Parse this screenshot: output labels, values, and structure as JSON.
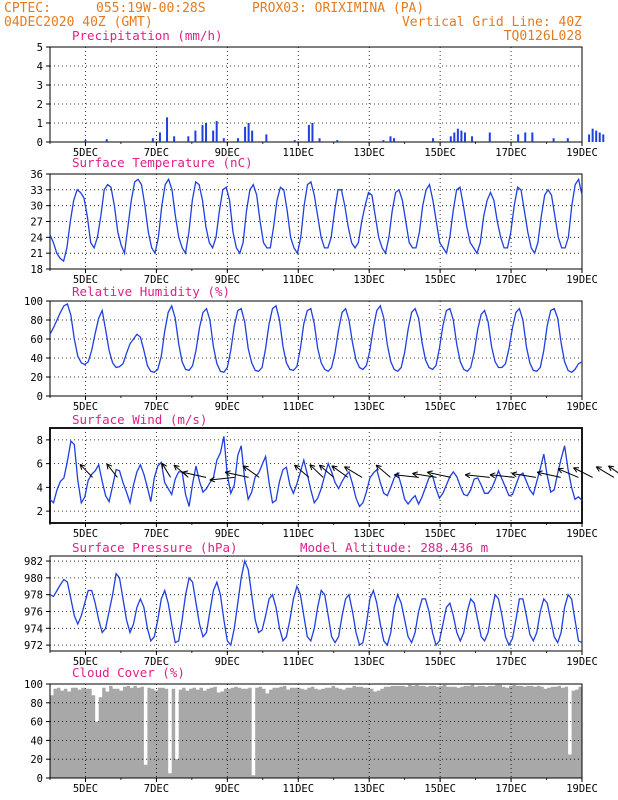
{
  "header": {
    "line1_left": "CPTEC:",
    "line1_coords": "055:19W-00:28S",
    "line1_station": "PROX03: ORIXIMINA (PA)",
    "line2_left": "04DEC2020 40Z (GMT)",
    "line2_right": "Vertical Grid Line: 40Z",
    "line3_right": "TQ0126L028"
  },
  "colors": {
    "header": "#e67a1e",
    "title": "#e0208a",
    "line": "#1f3fe0",
    "cloud": "#a8a8a8",
    "wind_arrow": "#000000"
  },
  "x_axis": {
    "start": "04DEC2020 00Z",
    "end": "19DEC2020 00Z",
    "tick_labels": [
      "5DEC",
      "7DEC",
      "9DEC",
      "11DEC",
      "13DEC",
      "15DEC",
      "17DEC",
      "19DEC"
    ]
  },
  "chart_data": [
    {
      "type": "bar",
      "title": "Precipitation (mm/h)",
      "ylim": [
        0,
        5
      ],
      "yticks": [
        0,
        1,
        2,
        3,
        4,
        5
      ],
      "note": "sparse hourly precipitation; values in days since 04DEC 00Z",
      "points": [
        [
          1.0,
          0.1
        ],
        [
          1.6,
          0.15
        ],
        [
          2.9,
          0.2
        ],
        [
          3.1,
          0.5
        ],
        [
          3.3,
          1.3
        ],
        [
          3.5,
          0.3
        ],
        [
          3.9,
          0.3
        ],
        [
          4.1,
          0.6
        ],
        [
          4.3,
          0.9
        ],
        [
          4.4,
          1.0
        ],
        [
          4.6,
          0.6
        ],
        [
          4.7,
          1.1
        ],
        [
          4.9,
          0.2
        ],
        [
          5.3,
          0.2
        ],
        [
          5.5,
          0.8
        ],
        [
          5.6,
          1.0
        ],
        [
          5.7,
          0.6
        ],
        [
          6.1,
          0.4
        ],
        [
          6.9,
          0.1
        ],
        [
          7.3,
          0.9
        ],
        [
          7.4,
          1.0
        ],
        [
          7.6,
          0.2
        ],
        [
          8.1,
          0.1
        ],
        [
          9.4,
          0.1
        ],
        [
          9.6,
          0.3
        ],
        [
          9.7,
          0.2
        ],
        [
          10.8,
          0.2
        ],
        [
          11.3,
          0.3
        ],
        [
          11.4,
          0.5
        ],
        [
          11.5,
          0.7
        ],
        [
          11.6,
          0.6
        ],
        [
          11.7,
          0.5
        ],
        [
          11.9,
          0.3
        ],
        [
          12.4,
          0.5
        ],
        [
          13.2,
          0.4
        ],
        [
          13.4,
          0.5
        ],
        [
          13.6,
          0.5
        ],
        [
          14.2,
          0.2
        ],
        [
          14.6,
          0.2
        ],
        [
          15.2,
          0.4
        ],
        [
          15.3,
          0.7
        ],
        [
          15.4,
          0.6
        ],
        [
          15.5,
          0.5
        ],
        [
          15.6,
          0.4
        ],
        [
          16.2,
          0.2
        ],
        [
          16.6,
          0.1
        ],
        [
          17.1,
          0.2
        ]
      ]
    },
    {
      "type": "line",
      "title": "Surface Temperature (nC)",
      "ylim": [
        18,
        36
      ],
      "yticks": [
        18,
        21,
        24,
        27,
        30,
        33,
        36
      ],
      "series": [
        {
          "values": [
            24.5,
            23,
            21,
            20,
            19.5,
            22,
            27,
            31,
            33,
            32.5,
            31.5,
            28,
            23,
            22,
            24,
            28,
            33,
            34,
            33.5,
            30,
            25,
            22.5,
            21,
            26,
            31,
            34.5,
            35,
            34,
            30,
            25,
            22,
            21,
            24,
            30,
            34,
            35,
            33,
            28,
            24,
            22,
            21,
            25,
            31,
            34.5,
            34,
            31,
            26,
            23,
            22,
            24,
            29,
            33,
            33.5,
            31,
            25,
            22,
            21,
            23,
            29,
            33,
            34,
            32,
            27,
            23,
            22,
            22,
            26,
            31,
            33.5,
            33,
            29,
            24,
            22,
            21,
            24,
            30,
            34,
            34.5,
            32,
            28,
            24,
            22,
            22,
            24,
            29,
            33,
            33,
            30,
            26,
            23,
            22,
            23,
            27,
            30,
            32.5,
            32,
            28,
            24,
            22,
            21,
            24,
            29,
            32.5,
            33,
            31,
            27,
            23,
            22,
            22,
            25,
            30,
            33,
            34,
            31,
            27,
            23,
            22,
            21,
            24,
            29,
            33,
            33.5,
            30,
            26,
            23,
            22,
            21,
            23,
            28,
            31,
            32.5,
            31,
            27,
            24,
            22,
            22,
            25,
            30,
            33.5,
            33,
            29,
            25,
            22,
            21,
            23,
            28,
            32,
            33,
            32,
            28,
            24,
            22,
            22,
            24,
            30,
            34,
            35,
            32
          ]
        }
      ]
    },
    {
      "type": "line",
      "title": "Relative Humidity (%)",
      "ylim": [
        0,
        100
      ],
      "yticks": [
        0,
        20,
        40,
        60,
        80,
        100
      ],
      "series": [
        {
          "values": [
            65,
            72,
            80,
            88,
            95,
            97,
            85,
            60,
            42,
            35,
            33,
            36,
            48,
            66,
            82,
            90,
            70,
            48,
            35,
            30,
            31,
            34,
            45,
            55,
            60,
            65,
            62,
            48,
            32,
            26,
            25,
            28,
            42,
            68,
            88,
            95,
            82,
            55,
            36,
            28,
            27,
            32,
            48,
            72,
            88,
            92,
            80,
            52,
            34,
            26,
            25,
            30,
            48,
            74,
            90,
            92,
            78,
            50,
            35,
            27,
            26,
            30,
            50,
            76,
            92,
            95,
            80,
            52,
            35,
            28,
            27,
            31,
            50,
            76,
            90,
            92,
            76,
            50,
            35,
            28,
            26,
            30,
            46,
            70,
            88,
            92,
            80,
            56,
            38,
            30,
            28,
            32,
            48,
            72,
            90,
            95,
            82,
            54,
            36,
            28,
            26,
            30,
            46,
            70,
            88,
            92,
            82,
            56,
            38,
            30,
            28,
            32,
            50,
            74,
            90,
            92,
            80,
            54,
            36,
            28,
            26,
            30,
            46,
            70,
            86,
            90,
            78,
            52,
            36,
            30,
            30,
            34,
            50,
            72,
            88,
            92,
            80,
            52,
            35,
            27,
            26,
            30,
            48,
            74,
            90,
            92,
            82,
            56,
            36,
            27,
            25,
            28,
            34,
            36
          ]
        }
      ]
    },
    {
      "type": "line",
      "title": "Surface Wind (m/s)",
      "ylim": [
        1,
        9
      ],
      "yticks": [
        2,
        4,
        6,
        8
      ],
      "series": [
        {
          "values": [
            3.0,
            2.7,
            3.8,
            4.5,
            4.8,
            6.2,
            7.9,
            7.6,
            4.6,
            2.7,
            3.2,
            4.6,
            5.1,
            5.4,
            5.9,
            4.5,
            3.3,
            2.8,
            4.1,
            5.5,
            5.4,
            4.4,
            3.6,
            2.7,
            4.2,
            5.3,
            5.9,
            5.1,
            4.0,
            2.8,
            4.8,
            5.8,
            6.1,
            4.4,
            3.9,
            3.4,
            4.7,
            5.3,
            5.3,
            3.4,
            2.4,
            4.3,
            5.8,
            4.5,
            3.6,
            3.9,
            4.4,
            4.8,
            6.3,
            6.9,
            8.3,
            5.0,
            3.5,
            4.2,
            6.7,
            7.5,
            4.7,
            3.0,
            3.6,
            4.9,
            5.2,
            5.9,
            6.6,
            4.4,
            2.7,
            2.9,
            4.5,
            5.5,
            5.7,
            4.2,
            3.5,
            4.3,
            5.3,
            6.3,
            5.1,
            3.8,
            2.7,
            3.1,
            3.9,
            5.0,
            6.0,
            5.3,
            4.4,
            3.9,
            4.5,
            5.0,
            5.3,
            4.3,
            3.1,
            2.4,
            2.7,
            3.6,
            4.8,
            5.2,
            5.5,
            4.4,
            3.5,
            3.3,
            4.0,
            4.8,
            5.2,
            4.2,
            3.0,
            2.6,
            3.0,
            3.3,
            2.6,
            3.2,
            4.0,
            4.8,
            5.0,
            3.9,
            3.1,
            3.5,
            4.2,
            4.9,
            5.3,
            4.9,
            4.1,
            3.4,
            3.3,
            3.8,
            4.7,
            4.8,
            4.2,
            3.5,
            3.5,
            3.9,
            4.6,
            5.4,
            4.7,
            4.0,
            3.3,
            3.4,
            4.2,
            5.0,
            5.2,
            4.5,
            3.8,
            3.4,
            4.5,
            5.6,
            6.8,
            5.0,
            3.6,
            3.8,
            5.2,
            6.4,
            7.5,
            5.5,
            4.0,
            3.0,
            3.2,
            2.9
          ]
        }
      ],
      "arrows": [
        [
          1.2,
          -60,
          25
        ],
        [
          1.9,
          -65,
          25
        ],
        [
          3.4,
          -70,
          25
        ],
        [
          3.9,
          -55,
          25
        ],
        [
          4.4,
          -20,
          25
        ],
        [
          5.2,
          10,
          25
        ],
        [
          5.6,
          -20,
          25
        ],
        [
          5.9,
          -50,
          25
        ],
        [
          7.3,
          -55,
          25
        ],
        [
          7.7,
          -58,
          25
        ],
        [
          8.0,
          -55,
          25
        ],
        [
          8.4,
          -50,
          25
        ],
        [
          8.8,
          -45,
          25
        ],
        [
          9.6,
          -55,
          25
        ],
        [
          10.4,
          -10,
          25
        ],
        [
          10.9,
          -15,
          25
        ],
        [
          11.3,
          -20,
          25
        ],
        [
          12.4,
          -10,
          25
        ],
        [
          13.1,
          -10,
          25
        ],
        [
          13.7,
          -15,
          25
        ],
        [
          14.4,
          -20,
          25
        ],
        [
          14.9,
          -35,
          25
        ],
        [
          15.3,
          -40,
          25
        ],
        [
          15.9,
          -45,
          25
        ],
        [
          16.2,
          -50,
          25
        ],
        [
          16.6,
          -55,
          25
        ],
        [
          17.0,
          -50,
          25
        ]
      ]
    },
    {
      "type": "line",
      "title": "Surface Pressure (hPa)",
      "extra_label": "Model Altitude: 288.436  m",
      "ylim": [
        971.3,
        982.6
      ],
      "yticks": [
        972,
        974,
        976,
        978,
        980,
        982
      ],
      "series": [
        {
          "values": [
            978,
            977.8,
            978.5,
            979.2,
            979.8,
            979.5,
            977.5,
            975.5,
            974.5,
            975.5,
            977,
            978.5,
            978.5,
            977,
            975,
            973.5,
            974,
            976,
            978,
            980.5,
            980,
            977.5,
            975,
            973.5,
            974.5,
            976.5,
            977.5,
            976.5,
            974,
            972.5,
            973,
            975,
            977.5,
            978.5,
            977,
            974.5,
            972.3,
            972.5,
            975,
            978,
            980,
            979.5,
            977,
            974.5,
            973,
            973.5,
            976,
            978.5,
            979.5,
            978,
            975,
            972.5,
            972,
            974,
            977,
            980,
            982,
            981,
            978,
            975,
            973.5,
            973.8,
            975.5,
            977.5,
            978,
            976.5,
            974,
            972.5,
            973,
            975,
            977.5,
            979,
            978,
            975.5,
            973,
            972.5,
            974,
            976.5,
            978.5,
            978,
            975.5,
            973,
            972.3,
            973,
            975.5,
            977.5,
            978,
            976,
            973.5,
            972,
            972.3,
            974.5,
            977.5,
            978.5,
            977,
            974.5,
            972.5,
            972,
            973.5,
            976.5,
            978,
            977,
            975,
            973,
            972.3,
            973.5,
            976,
            977.5,
            977.5,
            976,
            973.5,
            972,
            972.5,
            974.5,
            976.5,
            977,
            975.5,
            973.5,
            972.5,
            973.5,
            976,
            977.5,
            977,
            975,
            973,
            972.5,
            973.5,
            976,
            978,
            977.5,
            975.5,
            973,
            972,
            972.8,
            975,
            977.5,
            977.5,
            975.5,
            973.3,
            972.5,
            973.5,
            976,
            977.5,
            977,
            975,
            973,
            972.3,
            973.5,
            976.5,
            978,
            977.5,
            975,
            972.5,
            972.3
          ]
        }
      ]
    },
    {
      "type": "area",
      "title": "Cloud Cover (%)",
      "ylim": [
        0,
        100
      ],
      "yticks": [
        0,
        20,
        40,
        60,
        80,
        100
      ],
      "series": [
        {
          "values": [
            88,
            95,
            96,
            93,
            95,
            92,
            96,
            96,
            94,
            96,
            95,
            95,
            88,
            60,
            86,
            96,
            92,
            98,
            95,
            95,
            93,
            97,
            98,
            96,
            98,
            96,
            97,
            14,
            96,
            95,
            93,
            96,
            96,
            95,
            5,
            95,
            20,
            94,
            96,
            93,
            95,
            96,
            94,
            96,
            93,
            95,
            96,
            97,
            91,
            92,
            95,
            95,
            96,
            97,
            96,
            95,
            95,
            96,
            3,
            96,
            97,
            95,
            90,
            94,
            96,
            96,
            97,
            98,
            94,
            96,
            96,
            96,
            95,
            94,
            96,
            97,
            95,
            94,
            95,
            96,
            96,
            98,
            96,
            95,
            94,
            96,
            96,
            98,
            97,
            97,
            96,
            96,
            95,
            92,
            93,
            95,
            97,
            97,
            98,
            98,
            98,
            98,
            97,
            99,
            98,
            99,
            98,
            98,
            97,
            98,
            98,
            97,
            98,
            99,
            97,
            97,
            97,
            96,
            97,
            98,
            98,
            99,
            97,
            98,
            98,
            97,
            98,
            98,
            99,
            99,
            97,
            96,
            98,
            99,
            98,
            98,
            97,
            98,
            98,
            97,
            98,
            97,
            95,
            96,
            97,
            97,
            98,
            96,
            97,
            25,
            93,
            94,
            97
          ]
        }
      ]
    }
  ]
}
